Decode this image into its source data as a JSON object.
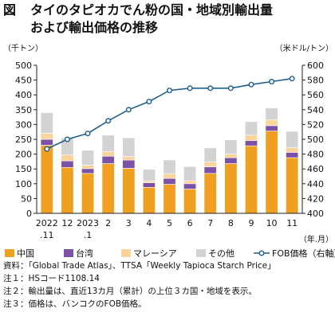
{
  "figure": {
    "label": "図",
    "title_line1": "タイのタピオカでん粉の国・地域別輸出量",
    "title_line2": "および輸出価格の推移"
  },
  "chart_data": {
    "type": "bar",
    "stacked": true,
    "categories": [
      {
        "top": "2022",
        "bottom": ".11"
      },
      {
        "top": "12",
        "bottom": ""
      },
      {
        "top": "2023",
        "bottom": ".1"
      },
      {
        "top": "2",
        "bottom": ""
      },
      {
        "top": "3",
        "bottom": ""
      },
      {
        "top": "4",
        "bottom": ""
      },
      {
        "top": "5",
        "bottom": ""
      },
      {
        "top": "6",
        "bottom": ""
      },
      {
        "top": "7",
        "bottom": ""
      },
      {
        "top": "8",
        "bottom": ""
      },
      {
        "top": "9",
        "bottom": ""
      },
      {
        "top": "10",
        "bottom": ""
      },
      {
        "top": "11",
        "bottom": ""
      }
    ],
    "x_unit": "（年.月）",
    "left_axis": {
      "unit": "（千トン）",
      "min": 0,
      "max": 500,
      "step": 50
    },
    "right_axis": {
      "unit": "（米ドル/トン）",
      "min": 400,
      "max": 600,
      "step": 20
    },
    "series": [
      {
        "name": "中国",
        "color": "#f0a020",
        "values": [
          230,
          155,
          135,
          168,
          152,
          88,
          98,
          82,
          135,
          168,
          228,
          278,
          188
        ]
      },
      {
        "name": "台湾",
        "color": "#7b52a6",
        "values": [
          20,
          22,
          16,
          25,
          28,
          15,
          20,
          18,
          22,
          20,
          18,
          18,
          18
        ]
      },
      {
        "name": "マレーシア",
        "color": "#fad49a",
        "values": [
          20,
          20,
          12,
          16,
          12,
          6,
          16,
          10,
          16,
          12,
          18,
          20,
          16
        ]
      },
      {
        "name": "その他",
        "color": "#d3d3d3",
        "values": [
          70,
          58,
          50,
          55,
          63,
          40,
          46,
          48,
          48,
          48,
          46,
          40,
          55
        ]
      }
    ],
    "line": {
      "name": "FOB価格（右軸）",
      "color": "#1f5f8b",
      "marker_fill": "#ffffff",
      "values": [
        487,
        500,
        508,
        525,
        540,
        551,
        566,
        569,
        569,
        569,
        574,
        578,
        582
      ]
    },
    "legend_position": "bottom",
    "grid": false
  },
  "notes": [
    "資料：「Global Trade Atlas」、TTSA「Weekly Tapioca Starch Price」",
    "注１：HSコード1108.14",
    "注２：輸出量は、直近13カ月（累計）の上位３カ国・地域を表示。",
    "注３：価格は、バンコクのFOB価格。"
  ]
}
